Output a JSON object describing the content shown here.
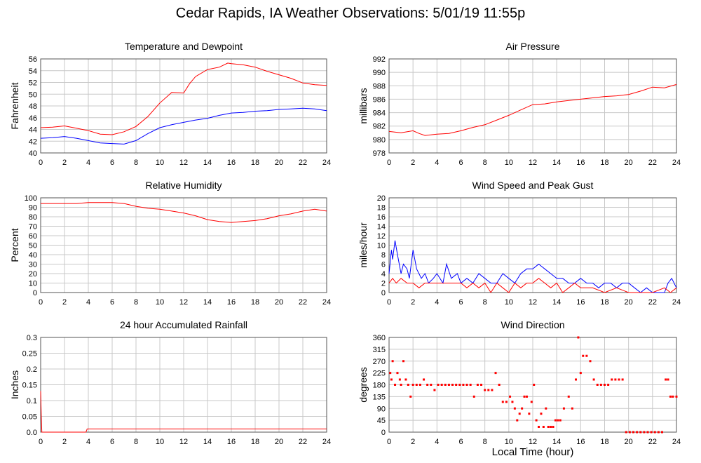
{
  "page_title": "Cedar Rapids, IA Weather Observations: 5/01/19 11:55p",
  "x_axis_label": "Local Time (hour)",
  "chart_data": [
    {
      "id": "temp",
      "type": "line",
      "title": "Temperature and Dewpoint",
      "xlabel": "",
      "ylabel": "Fahrenheit",
      "xlim": [
        0,
        24
      ],
      "ylim": [
        40,
        56
      ],
      "yticks": [
        40,
        42,
        44,
        46,
        48,
        50,
        52,
        54,
        56
      ],
      "xticks": [
        0,
        2,
        4,
        6,
        8,
        10,
        12,
        14,
        16,
        18,
        20,
        22,
        24
      ],
      "grid": true,
      "series": [
        {
          "color": "#ff0000",
          "x": [
            0,
            1,
            2,
            3,
            4,
            5,
            6,
            7,
            8,
            9,
            10,
            11,
            12,
            12.5,
            13,
            14,
            15,
            15.7,
            16,
            17,
            18,
            19,
            20,
            21,
            22,
            23,
            24
          ],
          "y": [
            44.3,
            44.4,
            44.6,
            44.2,
            43.8,
            43.2,
            43.1,
            43.6,
            44.5,
            46.2,
            48.5,
            50.3,
            50.2,
            51.8,
            53,
            54.2,
            54.6,
            55.3,
            55.2,
            55,
            54.6,
            53.9,
            53.3,
            52.7,
            51.9,
            51.6,
            51.5
          ]
        },
        {
          "color": "#0000ff",
          "x": [
            0,
            1,
            2,
            3,
            4,
            5,
            6,
            7,
            8,
            9,
            10,
            11,
            12,
            13,
            14,
            15,
            16,
            17,
            18,
            19,
            20,
            21,
            22,
            23,
            24
          ],
          "y": [
            42.5,
            42.6,
            42.8,
            42.5,
            42.1,
            41.7,
            41.6,
            41.5,
            42.1,
            43.3,
            44.3,
            44.8,
            45.2,
            45.6,
            45.9,
            46.4,
            46.8,
            46.9,
            47.1,
            47.2,
            47.4,
            47.5,
            47.6,
            47.5,
            47.2
          ]
        }
      ]
    },
    {
      "id": "pressure",
      "type": "line",
      "title": "Air Pressure",
      "xlabel": "",
      "ylabel": "millibars",
      "xlim": [
        0,
        24
      ],
      "ylim": [
        978,
        992
      ],
      "yticks": [
        978,
        980,
        982,
        984,
        986,
        988,
        990,
        992
      ],
      "xticks": [
        0,
        2,
        4,
        6,
        8,
        10,
        12,
        14,
        16,
        18,
        20,
        22,
        24
      ],
      "grid": true,
      "series": [
        {
          "color": "#ff0000",
          "x": [
            0,
            1,
            2,
            2.5,
            3,
            4,
            5,
            6,
            7,
            8,
            9,
            10,
            11,
            12,
            13,
            14,
            15,
            16,
            17,
            18,
            19,
            20,
            21,
            22,
            23,
            24
          ],
          "y": [
            981.2,
            981.0,
            981.3,
            980.9,
            980.6,
            980.8,
            980.9,
            981.3,
            981.8,
            982.2,
            982.9,
            983.6,
            984.4,
            985.2,
            985.3,
            985.6,
            985.8,
            986.0,
            986.2,
            986.4,
            986.5,
            986.7,
            987.2,
            987.8,
            987.7,
            988.2
          ]
        }
      ]
    },
    {
      "id": "humidity",
      "type": "line",
      "title": "Relative Humidity",
      "xlabel": "",
      "ylabel": "Percent",
      "xlim": [
        0,
        24
      ],
      "ylim": [
        0,
        100
      ],
      "yticks": [
        0,
        10,
        20,
        30,
        40,
        50,
        60,
        70,
        80,
        90,
        100
      ],
      "xticks": [
        0,
        2,
        4,
        6,
        8,
        10,
        12,
        14,
        16,
        18,
        20,
        22,
        24
      ],
      "grid": true,
      "series": [
        {
          "color": "#ff0000",
          "x": [
            0,
            1,
            2,
            3,
            4,
            5,
            6,
            7,
            8,
            9,
            10,
            11,
            12,
            13,
            14,
            15,
            16,
            17,
            18,
            19,
            20,
            21,
            22,
            23,
            24
          ],
          "y": [
            94,
            94,
            94,
            94,
            95,
            95,
            95,
            94,
            91,
            89,
            88,
            86,
            84,
            81,
            77,
            75,
            74,
            75,
            76,
            78,
            81,
            83,
            86,
            88,
            86
          ]
        }
      ]
    },
    {
      "id": "wind",
      "type": "line",
      "title": "Wind Speed and Peak Gust",
      "xlabel": "",
      "ylabel": "miles/hour",
      "xlim": [
        0,
        24
      ],
      "ylim": [
        0,
        20
      ],
      "yticks": [
        0,
        2,
        4,
        6,
        8,
        10,
        12,
        14,
        16,
        18,
        20
      ],
      "xticks": [
        0,
        2,
        4,
        6,
        8,
        10,
        12,
        14,
        16,
        18,
        20,
        22,
        24
      ],
      "grid": true,
      "series": [
        {
          "color": "#0000ff",
          "x": [
            0,
            0.2,
            0.3,
            0.5,
            0.7,
            1,
            1.2,
            1.5,
            1.7,
            2,
            2.3,
            2.7,
            3,
            3.3,
            3.7,
            4,
            4.5,
            4.8,
            5.2,
            5.7,
            6,
            6.5,
            7,
            7.5,
            8,
            8.5,
            9,
            9.5,
            10,
            10.5,
            11,
            11.5,
            12,
            12.5,
            13,
            13.5,
            14,
            14.5,
            15,
            15.5,
            16,
            16.5,
            17,
            17.5,
            18,
            18.5,
            19,
            19.5,
            20,
            20.5,
            21,
            21.5,
            22,
            22.5,
            23,
            23.3,
            23.6,
            24
          ],
          "y": [
            4,
            9,
            7,
            11,
            8,
            4,
            6,
            5,
            3,
            9,
            5,
            3,
            4,
            2,
            3,
            4,
            2,
            6,
            3,
            4,
            2,
            3,
            2,
            4,
            3,
            2,
            2,
            4,
            3,
            2,
            4,
            5,
            5,
            6,
            5,
            4,
            3,
            3,
            2,
            2,
            3,
            2,
            2,
            1,
            2,
            2,
            1,
            2,
            2,
            1,
            0,
            1,
            0,
            0,
            0,
            2,
            3,
            1
          ]
        },
        {
          "color": "#ff0000",
          "x": [
            0,
            0.3,
            0.6,
            1,
            1.5,
            2,
            2.5,
            3,
            4,
            5,
            6,
            6.5,
            7,
            7.5,
            8,
            8.5,
            9,
            9.5,
            10,
            10.5,
            11,
            11.5,
            12,
            12.5,
            13,
            13.5,
            14,
            14.5,
            15,
            15.5,
            16,
            17,
            18,
            19,
            20,
            21,
            22,
            23,
            23.5,
            24
          ],
          "y": [
            2,
            3,
            2,
            3,
            2,
            2,
            1,
            2,
            2,
            2,
            2,
            1,
            2,
            1,
            2,
            0,
            2,
            1,
            0,
            2,
            1,
            2,
            2,
            3,
            2,
            1,
            2,
            0,
            1,
            2,
            1,
            1,
            0,
            1,
            0,
            0,
            0,
            1,
            0,
            1
          ]
        }
      ]
    },
    {
      "id": "rain",
      "type": "line",
      "title": "24 hour Accumulated Rainfall",
      "xlabel": "",
      "ylabel": "Inches",
      "xlim": [
        0,
        24
      ],
      "ylim": [
        0,
        0.3
      ],
      "yticks": [
        0.0,
        0.05,
        0.1,
        0.15,
        0.2,
        0.25,
        0.3
      ],
      "ytick_labels": [
        "0.0",
        "0.05",
        "0.1",
        "0.15",
        "0.2",
        "0.25",
        "0.3"
      ],
      "xticks": [
        0,
        2,
        4,
        6,
        8,
        10,
        12,
        14,
        16,
        18,
        20,
        22,
        24
      ],
      "grid": true,
      "series": [
        {
          "color": "#ff0000",
          "x": [
            0,
            0.05,
            0.1,
            0.2,
            3.8,
            3.9,
            24
          ],
          "y": [
            0.13,
            0.05,
            0.0,
            0.0,
            0.0,
            0.01,
            0.01
          ]
        }
      ]
    },
    {
      "id": "direction",
      "type": "scatter",
      "title": "Wind Direction",
      "xlabel": "Local Time (hour)",
      "ylabel": "degrees",
      "xlim": [
        0,
        24
      ],
      "ylim": [
        0,
        360
      ],
      "yticks": [
        0,
        45,
        90,
        135,
        180,
        225,
        270,
        315,
        360
      ],
      "xticks": [
        0,
        2,
        4,
        6,
        8,
        10,
        12,
        14,
        16,
        18,
        20,
        22,
        24
      ],
      "grid": true,
      "series": [
        {
          "color": "#ff0000",
          "x": [
            0.1,
            0.2,
            0.3,
            0.5,
            0.7,
            0.9,
            1.0,
            1.2,
            1.4,
            1.6,
            1.8,
            2.0,
            2.3,
            2.6,
            2.9,
            3.2,
            3.5,
            3.8,
            4.1,
            4.4,
            4.7,
            5.0,
            5.3,
            5.6,
            5.9,
            6.2,
            6.5,
            6.8,
            7.1,
            7.4,
            7.7,
            8.0,
            8.3,
            8.6,
            8.9,
            9.2,
            9.5,
            9.8,
            10.1,
            10.3,
            10.5,
            10.7,
            10.9,
            11.1,
            11.3,
            11.5,
            11.7,
            11.9,
            12.1,
            12.3,
            12.5,
            12.7,
            12.9,
            13.1,
            13.3,
            13.5,
            13.7,
            13.9,
            14.1,
            14.3,
            14.6,
            15.0,
            15.3,
            15.6,
            15.8,
            16.0,
            16.2,
            16.5,
            16.8,
            17.1,
            17.4,
            17.7,
            18.0,
            18.3,
            18.6,
            18.9,
            19.2,
            19.5,
            19.8,
            20.1,
            20.4,
            20.7,
            21.0,
            21.3,
            21.6,
            21.9,
            22.2,
            22.5,
            22.8,
            23.1,
            23.3,
            23.5,
            23.7,
            24.0
          ],
          "y": [
            225,
            200,
            270,
            180,
            225,
            200,
            180,
            270,
            200,
            180,
            135,
            180,
            180,
            180,
            200,
            180,
            180,
            160,
            180,
            180,
            180,
            180,
            180,
            180,
            180,
            180,
            180,
            180,
            135,
            180,
            180,
            160,
            160,
            160,
            225,
            180,
            115,
            115,
            135,
            115,
            90,
            45,
            70,
            90,
            135,
            135,
            70,
            115,
            180,
            45,
            20,
            70,
            20,
            90,
            20,
            20,
            20,
            45,
            45,
            45,
            90,
            135,
            90,
            200,
            360,
            225,
            290,
            290,
            270,
            200,
            180,
            180,
            180,
            180,
            200,
            200,
            200,
            200,
            0,
            0,
            0,
            0,
            0,
            0,
            0,
            0,
            0,
            0,
            0,
            200,
            200,
            135,
            135,
            135
          ]
        }
      ]
    }
  ]
}
